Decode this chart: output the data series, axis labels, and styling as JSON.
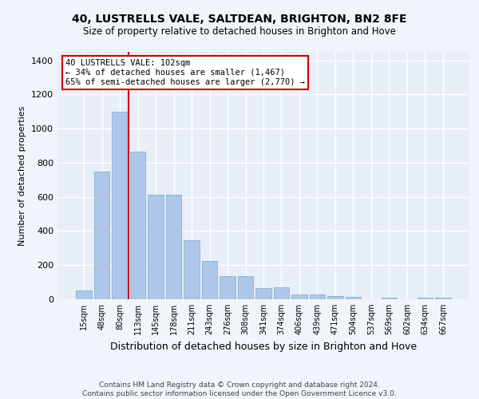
{
  "title_line1": "40, LUSTRELLS VALE, SALTDEAN, BRIGHTON, BN2 8FE",
  "title_line2": "Size of property relative to detached houses in Brighton and Hove",
  "xlabel": "Distribution of detached houses by size in Brighton and Hove",
  "ylabel": "Number of detached properties",
  "categories": [
    "15sqm",
    "48sqm",
    "80sqm",
    "113sqm",
    "145sqm",
    "178sqm",
    "211sqm",
    "243sqm",
    "276sqm",
    "308sqm",
    "341sqm",
    "374sqm",
    "406sqm",
    "439sqm",
    "471sqm",
    "504sqm",
    "537sqm",
    "569sqm",
    "602sqm",
    "634sqm",
    "667sqm"
  ],
  "values": [
    50,
    750,
    1100,
    865,
    615,
    615,
    345,
    225,
    135,
    135,
    65,
    70,
    30,
    30,
    20,
    15,
    0,
    10,
    0,
    10,
    10
  ],
  "bar_color": "#aec6e8",
  "bar_edge_color": "#7aa8cc",
  "vline_color": "#cc0000",
  "annotation_text": "40 LUSTRELLS VALE: 102sqm\n← 34% of detached houses are smaller (1,467)\n65% of semi-detached houses are larger (2,770) →",
  "annotation_box_color": "#cc0000",
  "annotation_bg": "#ffffff",
  "ylim": [
    0,
    1450
  ],
  "yticks": [
    0,
    200,
    400,
    600,
    800,
    1000,
    1200,
    1400
  ],
  "bg_color": "#e8eef7",
  "fig_bg_color": "#f0f4fb",
  "grid_color": "#ffffff",
  "footer_line1": "Contains HM Land Registry data © Crown copyright and database right 2024.",
  "footer_line2": "Contains public sector information licensed under the Open Government Licence v3.0."
}
